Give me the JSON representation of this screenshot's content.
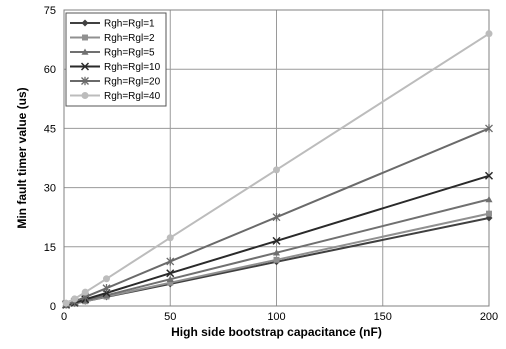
{
  "chart_data": {
    "type": "line",
    "xlabel": "High side bootstrap capacitance (nF)",
    "ylabel": "Min fault timer value (us)",
    "xlim": [
      0,
      200
    ],
    "ylim": [
      0,
      75
    ],
    "xticks": [
      0,
      50,
      100,
      150,
      200
    ],
    "yticks": [
      0,
      15,
      30,
      45,
      60,
      75
    ],
    "grid": true,
    "legend_position": "top-left",
    "x": [
      1,
      5,
      10,
      20,
      50,
      100,
      200
    ],
    "series": [
      {
        "name": "Rgh=Rgl=1",
        "marker": "diamond",
        "color": "#404040",
        "values": [
          0.2,
          0.6,
          1.2,
          2.3,
          5.6,
          11.2,
          22.3
        ]
      },
      {
        "name": "Rgh=Rgl=2",
        "marker": "square",
        "color": "#909090",
        "values": [
          0.2,
          0.6,
          1.2,
          2.4,
          5.9,
          11.7,
          23.4
        ]
      },
      {
        "name": "Rgh=Rgl=5",
        "marker": "triangle",
        "color": "#707070",
        "values": [
          0.3,
          0.7,
          1.4,
          2.7,
          6.8,
          13.5,
          27.0
        ]
      },
      {
        "name": "Rgh=Rgl=10",
        "marker": "x",
        "color": "#2a2a2a",
        "values": [
          0.3,
          0.8,
          1.7,
          3.3,
          8.3,
          16.5,
          33.0
        ]
      },
      {
        "name": "Rgh=Rgl=20",
        "marker": "star",
        "color": "#6a6a6a",
        "values": [
          0.5,
          1.1,
          2.3,
          4.5,
          11.3,
          22.5,
          45.0
        ]
      },
      {
        "name": "Rgh=Rgl=40",
        "marker": "circle",
        "color": "#bcbcbc",
        "values": [
          0.7,
          1.8,
          3.5,
          6.9,
          17.3,
          34.5,
          69.0
        ]
      }
    ]
  }
}
